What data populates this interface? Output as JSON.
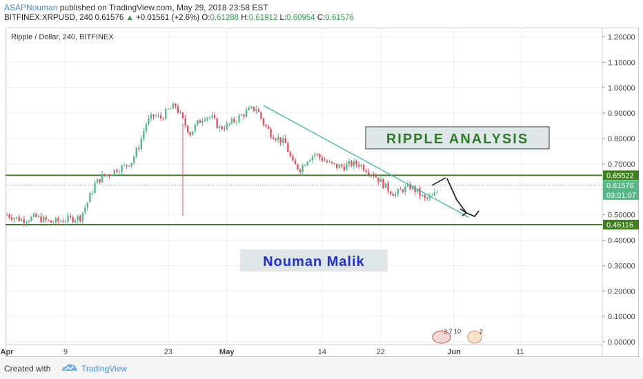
{
  "header": {
    "author": "ASAPNouman",
    "published": "published on TradingView.com, May 29, 2018 23:58 EST",
    "symbol_line": "BITFINEX:XRPUSD, 240",
    "last_price": "0.61576",
    "change": "+0.01561 (+2.6%)",
    "o_label": "O:",
    "o_value": "0.61288",
    "h_label": "H:",
    "h_value": "0.61912",
    "l_label": "L:",
    "l_value": "0.60954",
    "c_label": "C:",
    "c_value": "0.61576"
  },
  "footer": {
    "created_with": "Created with",
    "brand": "TradingView"
  },
  "chart_data": {
    "type": "candlestick",
    "title": "Ripple / Dollar, 240, BITFINEX",
    "ylim": [
      0,
      1.25
    ],
    "y_ticks": [
      "1.20000",
      "1.10000",
      "1.00000",
      "0.90000",
      "0.80000",
      "0.70000",
      "0.60000",
      "0.50000",
      "0.40000",
      "0.30000",
      "0.20000",
      "0.10000",
      "0.00000"
    ],
    "y_tick_values": [
      1.2,
      1.1,
      1.0,
      0.9,
      0.8,
      0.7,
      0.6,
      0.5,
      0.4,
      0.3,
      0.2,
      0.1,
      0.0
    ],
    "x_ticks": [
      "Apr",
      "9",
      "23",
      "May",
      "14",
      "22",
      "Jun",
      "11"
    ],
    "x_tick_days": [
      0,
      8,
      22,
      30,
      43,
      51,
      61,
      70
    ],
    "xlim_days": [
      0,
      80
    ],
    "close_series_days": [
      0,
      2,
      4,
      6,
      8,
      10,
      11,
      12,
      13,
      14,
      15,
      16,
      17,
      18,
      19,
      20,
      21,
      22,
      23,
      24,
      25,
      26,
      27,
      28,
      29,
      30,
      31,
      32,
      33,
      34,
      35,
      36,
      37,
      38,
      39,
      40,
      41,
      42,
      43,
      44,
      45,
      46,
      47,
      48,
      49,
      50,
      51,
      52,
      53,
      54,
      55,
      56,
      57,
      58,
      59
    ],
    "close_series": [
      0.5,
      0.48,
      0.49,
      0.47,
      0.48,
      0.49,
      0.55,
      0.62,
      0.65,
      0.66,
      0.68,
      0.69,
      0.71,
      0.77,
      0.86,
      0.89,
      0.88,
      0.91,
      0.93,
      0.87,
      0.82,
      0.86,
      0.89,
      0.88,
      0.84,
      0.85,
      0.87,
      0.89,
      0.91,
      0.92,
      0.86,
      0.82,
      0.8,
      0.78,
      0.7,
      0.68,
      0.72,
      0.74,
      0.72,
      0.7,
      0.69,
      0.69,
      0.7,
      0.7,
      0.68,
      0.66,
      0.63,
      0.6,
      0.58,
      0.6,
      0.61,
      0.59,
      0.56,
      0.57,
      0.6
    ],
    "spike_low": {
      "day": 24,
      "price": 0.495
    },
    "horizontal_lines": [
      {
        "price": 0.65522,
        "label": "0.65522",
        "color": "#3f7f1f"
      },
      {
        "price": 0.46116,
        "label": "0.46116",
        "color": "#3f7f1f"
      }
    ],
    "last_price_label": "0.61576",
    "countdown_label": "03:01:07",
    "trendline": {
      "from": {
        "day": 35,
        "price": 0.93
      },
      "to": {
        "day": 63,
        "price": 0.49
      },
      "color": "#2fb5a6"
    },
    "annotations": [
      "RIPPLE ANALYSIS",
      "Nouman Malik"
    ],
    "event_markers": [
      "3 7 10",
      "2"
    ]
  }
}
